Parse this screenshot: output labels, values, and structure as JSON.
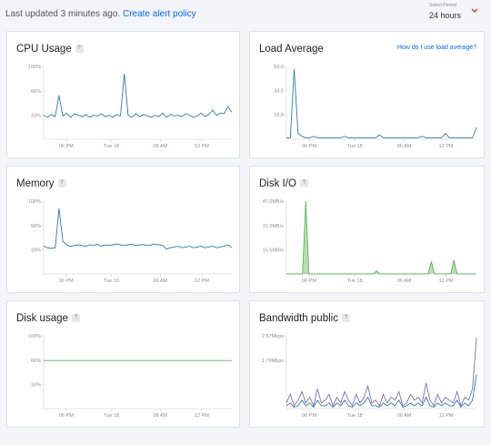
{
  "header": {
    "updated_text": "Last updated 3 minutes ago.",
    "alert_link": "Create alert policy",
    "period_caption": "Select Period",
    "period_value": "24 hours",
    "chevron_icon": "chevron-down-icon"
  },
  "colors": {
    "line_blue": "#2f7bab",
    "line_green": "#5cb85c",
    "line_purple": "#7b6fbf",
    "accent": "#0069ff"
  },
  "cards": {
    "cpu": {
      "title": "CPU Usage",
      "help": "?"
    },
    "load": {
      "title": "Load Average",
      "help_link": "How do I use load average?"
    },
    "memory": {
      "title": "Memory",
      "help": "?"
    },
    "disk_io": {
      "title": "Disk I/O",
      "help": "?"
    },
    "disk_usage": {
      "title": "Disk usage",
      "help": "?"
    },
    "bandwidth": {
      "title": "Bandwidth public",
      "help": "?"
    }
  },
  "chart_data": [
    {
      "id": "cpu",
      "type": "line",
      "title": "CPU Usage",
      "x_ticks": [
        "06 PM",
        "Tue 18",
        "06 AM",
        "12 PM"
      ],
      "y_ticks": [
        "100%",
        "66%",
        "33%"
      ],
      "ylim": [
        0,
        100
      ],
      "series": [
        {
          "values": [
            33,
            30,
            34,
            31,
            60,
            32,
            36,
            30,
            35,
            33,
            31,
            34,
            30,
            33,
            32,
            35,
            31,
            33,
            30,
            34,
            32,
            90,
            33,
            30,
            35,
            31,
            34,
            32,
            30,
            33,
            31,
            36,
            30,
            34,
            32,
            33,
            31,
            35,
            33,
            30,
            32,
            36,
            31,
            34,
            40,
            33,
            36,
            35,
            45,
            37
          ]
        }
      ]
    },
    {
      "id": "load",
      "type": "line",
      "title": "Load Average",
      "x_ticks": [
        "06 PM",
        "Tue 18",
        "06 AM",
        "12 PM"
      ],
      "y_ticks": [
        "50.0",
        "33.5",
        "16.8"
      ],
      "ylim": [
        0,
        50
      ],
      "series": [
        {
          "values": [
            1,
            1,
            48,
            4,
            2,
            1,
            1,
            2,
            1,
            1,
            1,
            1,
            1,
            1,
            1,
            2,
            1,
            1,
            1,
            1,
            1,
            1,
            1,
            1,
            3,
            1,
            1,
            1,
            1,
            1,
            1,
            1,
            1,
            1,
            1,
            2,
            1,
            1,
            1,
            1,
            1,
            4,
            1,
            1,
            1,
            1,
            1,
            1,
            1,
            8
          ]
        }
      ]
    },
    {
      "id": "memory",
      "type": "line",
      "title": "Memory",
      "x_ticks": [
        "06 PM",
        "Tue 18",
        "06 AM",
        "12 PM"
      ],
      "y_ticks": [
        "100%",
        "66%",
        "33%"
      ],
      "ylim": [
        0,
        100
      ],
      "series": [
        {
          "values": [
            38,
            36,
            35,
            36,
            90,
            45,
            40,
            38,
            39,
            40,
            39,
            38,
            40,
            39,
            41,
            38,
            40,
            39,
            40,
            41,
            40,
            39,
            40,
            41,
            39,
            40,
            40,
            39,
            40,
            41,
            40,
            39,
            34,
            36,
            37,
            38,
            36,
            37,
            38,
            36,
            37,
            38,
            36,
            37,
            38,
            36,
            37,
            38,
            40,
            36
          ]
        }
      ]
    },
    {
      "id": "disk_io",
      "type": "area",
      "title": "Disk I/O",
      "x_ticks": [
        "06 PM",
        "Tue 18",
        "06 AM",
        "12 PM"
      ],
      "y_ticks": [
        "47.0MB/s",
        "31.0MB/s",
        "15.5MB/s"
      ],
      "ylim": [
        0,
        47
      ],
      "series": [
        {
          "values": [
            0,
            0,
            0,
            0,
            0,
            0,
            47,
            0,
            0,
            0,
            0,
            0,
            0,
            0,
            0,
            0,
            0,
            0,
            0,
            0,
            0,
            0,
            0,
            0,
            0,
            0,
            0,
            0,
            2,
            0,
            0,
            0,
            0,
            0,
            0,
            0,
            0,
            0,
            0,
            0,
            0,
            0,
            0,
            0,
            0,
            8,
            0,
            0,
            0,
            0,
            0,
            0,
            9,
            0,
            0,
            0,
            0,
            0,
            0,
            0
          ]
        }
      ]
    },
    {
      "id": "disk_usage",
      "type": "line",
      "title": "Disk usage",
      "x_ticks": [
        "06 PM",
        "Tue 18",
        "06 AM",
        "12 PM"
      ],
      "y_ticks": [
        "100%",
        "66%",
        "33%"
      ],
      "ylim": [
        0,
        100
      ],
      "series": [
        {
          "values": [
            66,
            66,
            66,
            66,
            66,
            66,
            66,
            66,
            66,
            66
          ]
        }
      ]
    },
    {
      "id": "bandwidth",
      "type": "line",
      "title": "Bandwidth public",
      "x_ticks": [
        "06 PM",
        "Tue 18",
        "06 AM",
        "12 PM"
      ],
      "y_ticks": [
        "2.57Mbps",
        "1.70Mbps",
        "850kbps"
      ],
      "ylim": [
        0,
        2.57
      ],
      "series": [
        {
          "values": [
            0.2,
            0.5,
            0.1,
            0.3,
            0.6,
            0.2,
            0.4,
            0.1,
            0.7,
            0.2,
            0.3,
            0.5,
            0.1,
            0.4,
            0.2,
            0.6,
            0.3,
            0.1,
            0.5,
            0.2,
            0.4,
            0.8,
            0.2,
            0.3,
            0.1,
            0.5,
            0.2,
            0.4,
            0.3,
            0.6,
            0.1,
            0.2,
            0.5,
            0.3,
            0.4,
            0.2,
            0.9,
            0.3,
            0.1,
            0.5,
            0.2,
            0.4,
            0.3,
            0.2,
            0.6,
            0.1,
            0.4,
            0.3,
            0.7,
            2.5
          ]
        },
        {
          "values": [
            0.1,
            0.2,
            0.05,
            0.1,
            0.3,
            0.1,
            0.2,
            0.05,
            0.3,
            0.1,
            0.1,
            0.2,
            0.05,
            0.2,
            0.1,
            0.3,
            0.1,
            0.05,
            0.2,
            0.1,
            0.2,
            0.4,
            0.1,
            0.1,
            0.05,
            0.2,
            0.1,
            0.2,
            0.1,
            0.3,
            0.05,
            0.1,
            0.2,
            0.1,
            0.2,
            0.1,
            0.4,
            0.1,
            0.05,
            0.2,
            0.1,
            0.2,
            0.1,
            0.1,
            0.3,
            0.05,
            0.2,
            0.1,
            0.3,
            1.2
          ]
        }
      ]
    }
  ]
}
